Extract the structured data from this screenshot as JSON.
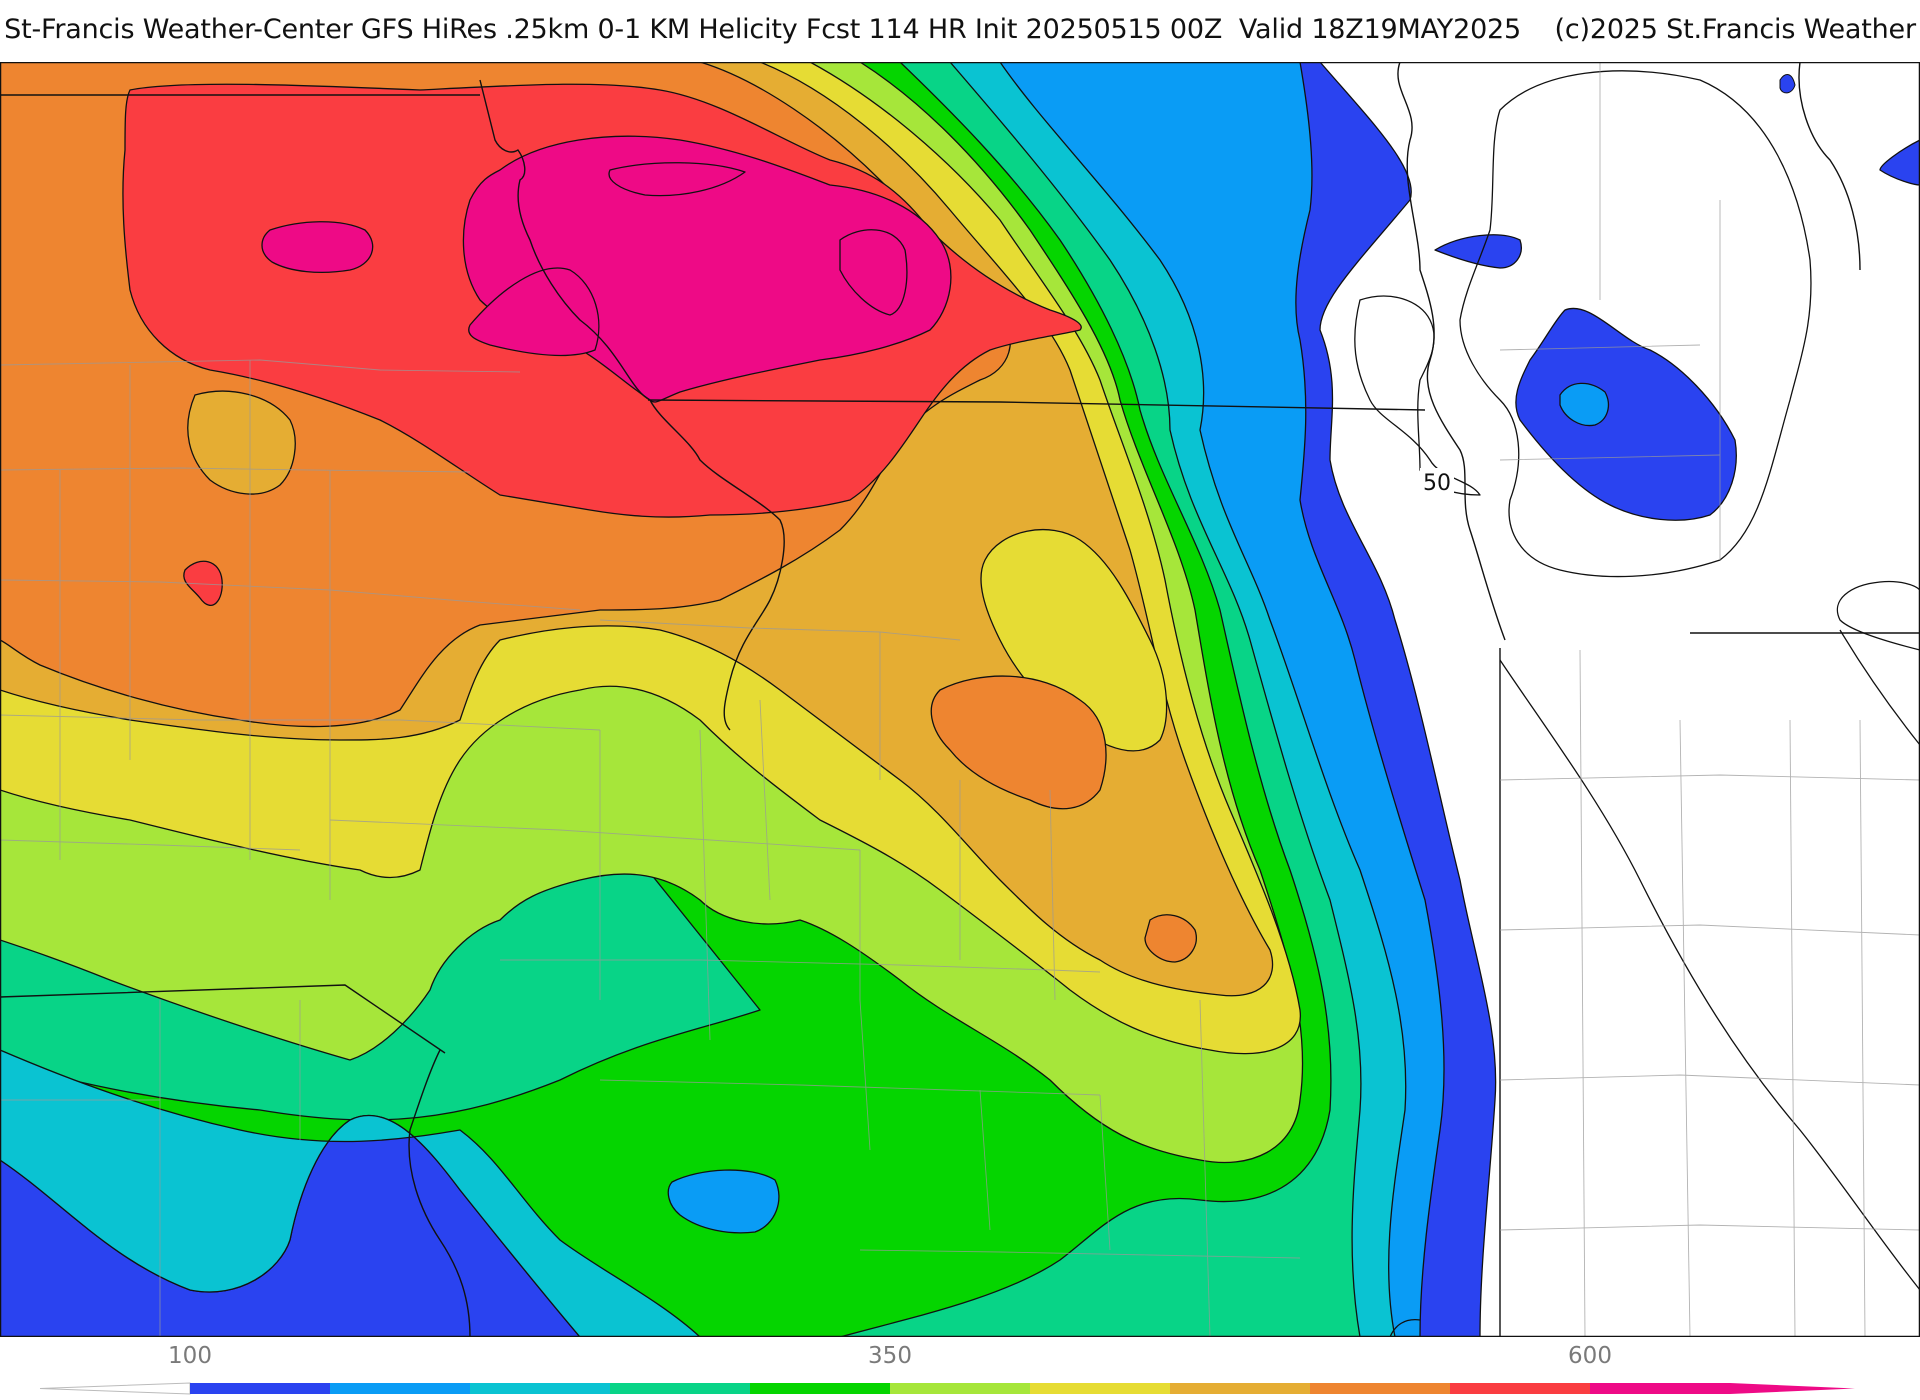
{
  "title": "St-Francis Weather-Center GFS HiRes .25km 0-1 KM Helicity Fcst 114 HR Init 20250515 00Z  Valid 18Z19MAY2025    (c)2025 St.Francis Weather",
  "map": {
    "field": "0-1 KM Helicity",
    "contour_label": "50",
    "band_colors": [
      "#2a43f0",
      "#0a9cf5",
      "#0ac3d2",
      "#08d487",
      "#05d500",
      "#a6e63a",
      "#e6dc34",
      "#e5ad33",
      "#ee8530",
      "#fa3d41",
      "#ee0a86"
    ]
  },
  "colorbar": {
    "ticks": [
      {
        "label": "100",
        "value": 100
      },
      {
        "label": "350",
        "value": 350
      },
      {
        "label": "600",
        "value": 600
      }
    ],
    "min": 50,
    "max": 650,
    "step": 50,
    "colors": [
      "#2a43f0",
      "#0a9cf5",
      "#0ac3d2",
      "#08d487",
      "#05d500",
      "#a6e63a",
      "#e6dc34",
      "#e5ad33",
      "#ee8530",
      "#fa3d41",
      "#ee0a86"
    ]
  }
}
